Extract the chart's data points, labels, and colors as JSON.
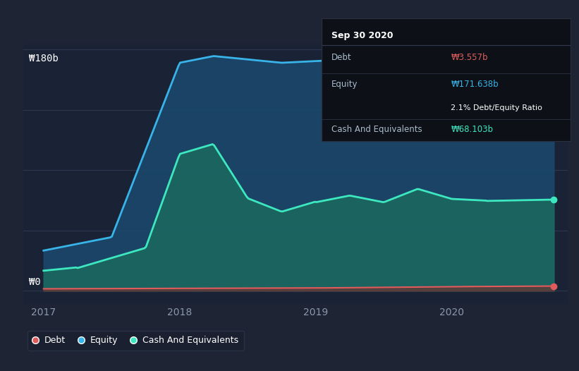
{
  "bg_color": "#1e2433",
  "plot_bg_color": "#1a2235",
  "grid_color": "#2e3650",
  "y_label_top": "₩180b",
  "y_label_bottom": "₩0",
  "x_ticks": [
    "2017",
    "2018",
    "2019",
    "2020"
  ],
  "tooltip_title": "Sep 30 2020",
  "tooltip_debt_label": "Debt",
  "tooltip_debt_value": "₩3.557b",
  "tooltip_equity_label": "Equity",
  "tooltip_equity_value": "₩171.638b",
  "tooltip_ratio": "2.1% Debt/Equity Ratio",
  "tooltip_cash_label": "Cash And Equivalents",
  "tooltip_cash_value": "₩68.103b",
  "legend_debt": "Debt",
  "legend_equity": "Equity",
  "legend_cash": "Cash And Equivalents",
  "debt_color": "#e05c5c",
  "equity_color": "#38b4e8",
  "cash_color": "#3de8c0",
  "equity_fill_color": "#1a4a6e",
  "cash_fill_color": "#1a6e5e",
  "y_max": 180,
  "y_min": -10,
  "tooltip_bg": "#0d1117",
  "tooltip_border": "#2a3040",
  "debt_color_tooltip": "#e05c5c",
  "equity_color_tooltip": "#38b4e8",
  "cash_color_tooltip": "#3de8c0"
}
